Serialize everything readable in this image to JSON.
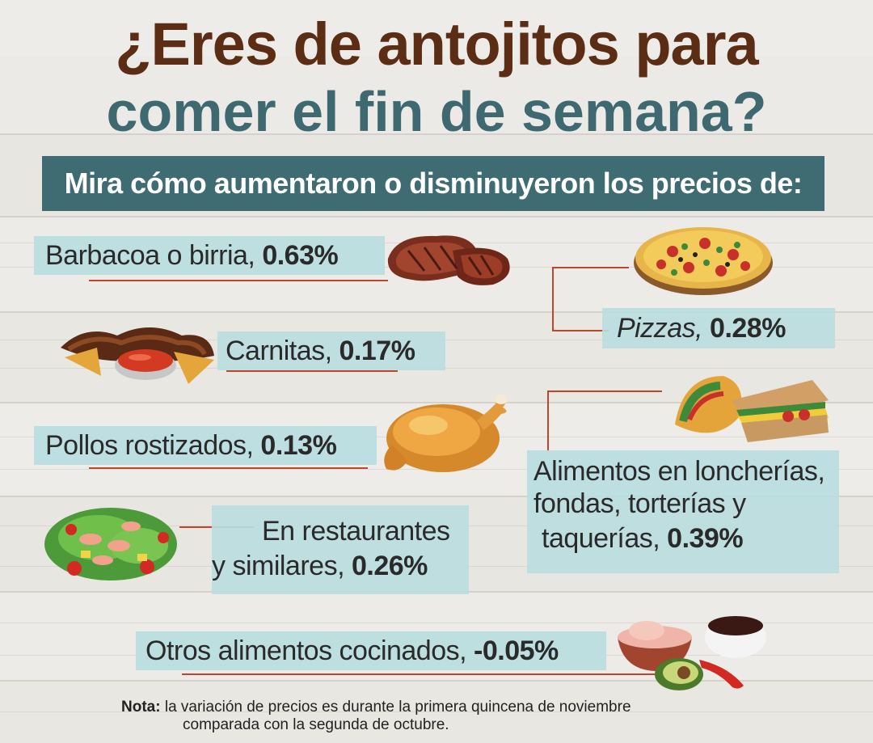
{
  "title": {
    "line1": "¿Eres de antojitos para",
    "line2": "comer el fin de semana?"
  },
  "subtitle": "Mira cómo aumentaron o disminuyeron los precios de:",
  "items": [
    {
      "name": "Barbacoa o birria,",
      "value": "0.63%"
    },
    {
      "name": "Pizzas,",
      "value": "0.28%"
    },
    {
      "name": "Carnitas,",
      "value": "0.17%"
    },
    {
      "name": "Pollos rostizados,",
      "value": "0.13%"
    },
    {
      "name_lines": [
        "Alimentos en loncherías,",
        "fondas, torterías y",
        "taquerías,"
      ],
      "value": "0.39%"
    },
    {
      "name_lines": [
        "En restaurantes",
        "y similares,"
      ],
      "value": "0.26%"
    },
    {
      "name": "Otros alimentos cocinados,",
      "value": "-0.05%"
    }
  ],
  "note": {
    "label": "Nota:",
    "text_line1": "la variación de precios es durante la primera quincena de noviembre",
    "text_line2": "comparada con la segunda de octubre."
  },
  "colors": {
    "title_brown": "#5b2d14",
    "title_teal": "#3e6970",
    "banner": "#3f6b72",
    "label_bg": "#badde0",
    "connector": "#c0462b"
  },
  "icons": [
    "steak-icon",
    "pizza-icon",
    "carnitas-icon",
    "roast-chicken-icon",
    "taco-sandwich-icon",
    "salad-icon",
    "dishes-icon"
  ]
}
